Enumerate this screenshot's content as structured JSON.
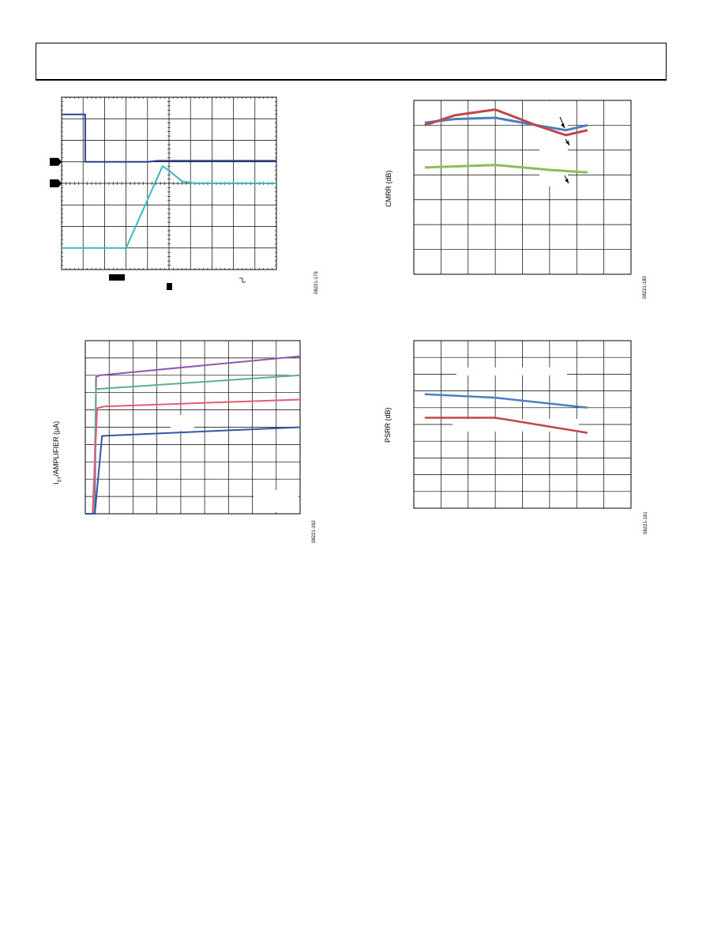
{
  "chart_data": [
    {
      "type": "line",
      "id": "scope",
      "grid": true,
      "xdivs": 10,
      "ydivs": 8,
      "series": [
        {
          "color": "#2b3f94",
          "points": [
            [
              0,
              7.2
            ],
            [
              1.1,
              7.2
            ],
            [
              1.1,
              5.0
            ],
            [
              4.0,
              5.0
            ],
            [
              4.5,
              5.05
            ],
            [
              10,
              5.05
            ]
          ]
        },
        {
          "color": "#3bb8bf",
          "points": [
            [
              0,
              1.0
            ],
            [
              3.0,
              1.0
            ],
            [
              4.7,
              4.8
            ],
            [
              5.0,
              4.6
            ],
            [
              5.6,
              4.1
            ],
            [
              6.2,
              4.0
            ],
            [
              10,
              4.0
            ]
          ]
        }
      ],
      "channel_markers": 2,
      "figure_id": "08221-179"
    },
    {
      "type": "line",
      "id": "cmrr",
      "ylabel": "CMRR (dB)",
      "grid": true,
      "xdivs": 8,
      "ydivs": 7,
      "series": [
        {
          "color": "#4a7fc1",
          "values": [
            [
              0.4,
              6.1
            ],
            [
              1.5,
              6.25
            ],
            [
              3.0,
              6.3
            ],
            [
              4.5,
              6.0
            ],
            [
              5.6,
              5.8
            ],
            [
              6.4,
              6.0
            ]
          ]
        },
        {
          "color": "#c04747",
          "values": [
            [
              0.4,
              6.0
            ],
            [
              1.5,
              6.4
            ],
            [
              3.0,
              6.63
            ],
            [
              4.5,
              6.0
            ],
            [
              5.6,
              5.6
            ],
            [
              6.4,
              5.8
            ]
          ]
        },
        {
          "color": "#8fbc5a",
          "values": [
            [
              0.4,
              4.3
            ],
            [
              3.0,
              4.4
            ],
            [
              5.0,
              4.2
            ],
            [
              6.4,
              4.1
            ]
          ]
        }
      ],
      "figure_id": "08221-180"
    },
    {
      "type": "line",
      "id": "isy",
      "ylabel": "I",
      "ylabel_sub": "SY",
      "ylabel_rest": "/AMPLIFIER (µA)",
      "grid": true,
      "xdivs": 9,
      "ydivs": 10,
      "series": [
        {
          "color": "#8a5ab0",
          "values": [
            [
              0.0,
              0.0
            ],
            [
              0.4,
              0.0
            ],
            [
              0.45,
              7.9
            ],
            [
              0.6,
              8.0
            ],
            [
              9.0,
              9.1
            ]
          ]
        },
        {
          "color": "#5bb08a",
          "values": [
            [
              0.0,
              0.0
            ],
            [
              0.35,
              0.0
            ],
            [
              0.45,
              7.2
            ],
            [
              9.0,
              8.0
            ]
          ]
        },
        {
          "color": "#e55a73",
          "values": [
            [
              0.0,
              0.0
            ],
            [
              0.3,
              0.0
            ],
            [
              0.5,
              6.1
            ],
            [
              0.8,
              6.2
            ],
            [
              9.0,
              6.6
            ]
          ]
        },
        {
          "color": "#3555a0",
          "values": [
            [
              0.0,
              0.0
            ],
            [
              0.4,
              0.0
            ],
            [
              0.7,
              4.5
            ],
            [
              9.0,
              5.0
            ]
          ]
        }
      ],
      "figure_id": "08221-182"
    },
    {
      "type": "line",
      "id": "psrr",
      "ylabel": "PSRR (dB)",
      "grid": true,
      "xdivs": 8,
      "ydivs": 10,
      "series": [
        {
          "color": "#4a7fc1",
          "values": [
            [
              0.4,
              6.8
            ],
            [
              3.0,
              6.6
            ],
            [
              6.4,
              6.0
            ]
          ]
        },
        {
          "color": "#c04747",
          "values": [
            [
              0.4,
              5.4
            ],
            [
              3.0,
              5.4
            ],
            [
              6.4,
              4.5
            ]
          ]
        }
      ],
      "figure_id": "08221-181"
    }
  ]
}
